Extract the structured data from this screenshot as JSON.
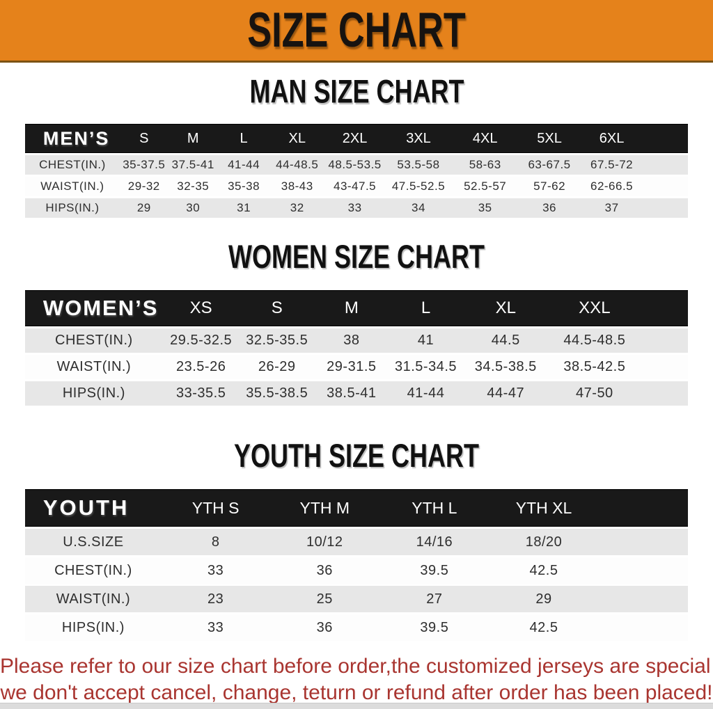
{
  "banner": {
    "title": "SIZE CHART"
  },
  "sections": {
    "men": {
      "heading": "MAN SIZE CHART",
      "table": {
        "group_label": "MEN’S",
        "columns": [
          "S",
          "M",
          "L",
          "XL",
          "2XL",
          "3XL",
          "4XL",
          "5XL",
          "6XL"
        ],
        "rows": [
          {
            "label": "CHEST(IN.)",
            "values": [
              "35-37.5",
              "37.5-41",
              "41-44",
              "44-48.5",
              "48.5-53.5",
              "53.5-58",
              "58-63",
              "63-67.5",
              "67.5-72"
            ]
          },
          {
            "label": "WAIST(IN.)",
            "values": [
              "29-32",
              "32-35",
              "35-38",
              "38-43",
              "43-47.5",
              "47.5-52.5",
              "52.5-57",
              "57-62",
              "62-66.5"
            ]
          },
          {
            "label": "HIPS(IN.)",
            "values": [
              "29",
              "30",
              "31",
              "32",
              "33",
              "34",
              "35",
              "36",
              "37"
            ]
          }
        ]
      }
    },
    "women": {
      "heading": "WOMEN SIZE CHART",
      "table": {
        "group_label": "WOMEN’S",
        "columns": [
          "XS",
          "S",
          "M",
          "L",
          "XL",
          "XXL"
        ],
        "rows": [
          {
            "label": "CHEST(IN.)",
            "values": [
              "29.5-32.5",
              "32.5-35.5",
              "38",
              "41",
              "44.5",
              "44.5-48.5"
            ]
          },
          {
            "label": "WAIST(IN.)",
            "values": [
              "23.5-26",
              "26-29",
              "29-31.5",
              "31.5-34.5",
              "34.5-38.5",
              "38.5-42.5"
            ]
          },
          {
            "label": "HIPS(IN.)",
            "values": [
              "33-35.5",
              "35.5-38.5",
              "38.5-41",
              "41-44",
              "44-47",
              "47-50"
            ]
          }
        ]
      }
    },
    "youth": {
      "heading": "YOUTH SIZE CHART",
      "table": {
        "group_label": "YOUTH",
        "columns": [
          "YTH S",
          "YTH M",
          "YTH L",
          "YTH XL"
        ],
        "rows": [
          {
            "label": "U.S.SIZE",
            "values": [
              "8",
              "10/12",
              "14/16",
              "18/20"
            ]
          },
          {
            "label": "CHEST(IN.)",
            "values": [
              "33",
              "36",
              "39.5",
              "42.5"
            ]
          },
          {
            "label": "WAIST(IN.)",
            "values": [
              "23",
              "25",
              "27",
              "29"
            ]
          },
          {
            "label": "HIPS(IN.)",
            "values": [
              "33",
              "36",
              "39.5",
              "42.5"
            ]
          }
        ]
      }
    }
  },
  "disclaimer": {
    "line1": "Please refer to our size chart before order,the customized jerseys are special products,",
    "line2": "we don't accept cancel, change, teturn or refund after order has been placed!"
  },
  "colors": {
    "banner_orange": "#E5821B",
    "bar_black": "#191919",
    "row_gray": "#E7E7E7",
    "row_white": "#FDFDFD",
    "disclaimer_red": "#A93530",
    "heading_black": "#111111"
  }
}
